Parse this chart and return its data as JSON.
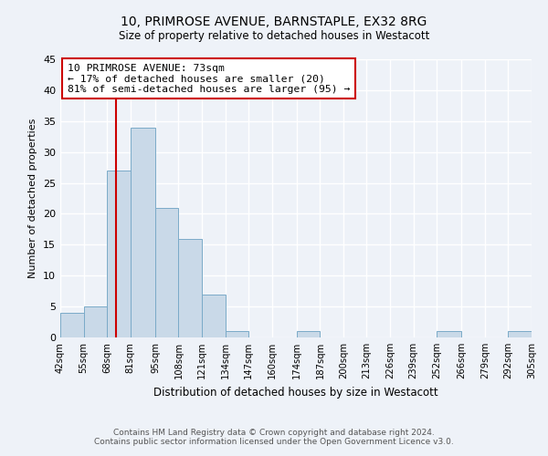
{
  "title": "10, PRIMROSE AVENUE, BARNSTAPLE, EX32 8RG",
  "subtitle": "Size of property relative to detached houses in Westacott",
  "xlabel": "Distribution of detached houses by size in Westacott",
  "ylabel": "Number of detached properties",
  "bin_edges": [
    42,
    55,
    68,
    81,
    95,
    108,
    121,
    134,
    147,
    160,
    174,
    187,
    200,
    213,
    226,
    239,
    252,
    266,
    279,
    292,
    305
  ],
  "bin_counts": [
    4,
    5,
    27,
    34,
    21,
    16,
    7,
    1,
    0,
    0,
    1,
    0,
    0,
    0,
    0,
    0,
    1,
    0,
    0,
    1
  ],
  "bar_color": "#c9d9e8",
  "bar_edge_color": "#7aaac8",
  "property_line_x": 73,
  "annotation_title": "10 PRIMROSE AVENUE: 73sqm",
  "annotation_line1": "← 17% of detached houses are smaller (20)",
  "annotation_line2": "81% of semi-detached houses are larger (95) →",
  "annotation_box_color": "#ffffff",
  "annotation_box_edge": "#cc0000",
  "vline_color": "#cc0000",
  "ylim": [
    0,
    45
  ],
  "yticks": [
    0,
    5,
    10,
    15,
    20,
    25,
    30,
    35,
    40,
    45
  ],
  "footnote1": "Contains HM Land Registry data © Crown copyright and database right 2024.",
  "footnote2": "Contains public sector information licensed under the Open Government Licence v3.0.",
  "bg_color": "#eef2f8",
  "grid_color": "#ffffff"
}
